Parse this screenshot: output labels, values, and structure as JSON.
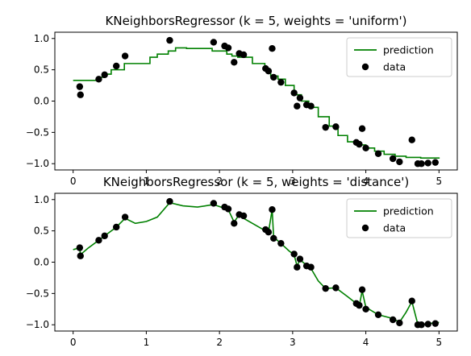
{
  "chart_data": [
    {
      "type": "line",
      "title": "KNeighborsRegressor (k = 5, weights = 'uniform')",
      "xlabel": "",
      "ylabel": "",
      "xlim": [
        -0.25,
        5.25
      ],
      "ylim": [
        -1.1,
        1.1
      ],
      "xticks": [
        0,
        1,
        2,
        3,
        4,
        5
      ],
      "yticks": [
        -1.0,
        -0.5,
        0.0,
        0.5,
        1.0
      ],
      "legend": {
        "location": "upper right",
        "entries": [
          "prediction",
          "data"
        ]
      },
      "colors": {
        "prediction": "#008000",
        "data": "#000000"
      },
      "series": [
        {
          "name": "prediction",
          "kind": "line",
          "step": true,
          "x": [
            0,
            0.35,
            0.42,
            0.52,
            0.7,
            1.05,
            1.15,
            1.3,
            1.4,
            1.55,
            1.9,
            2.1,
            2.17,
            2.25,
            2.45,
            2.62,
            2.7,
            2.8,
            2.9,
            3.02,
            3.12,
            3.22,
            3.35,
            3.5,
            3.62,
            3.75,
            3.88,
            4.0,
            4.12,
            4.25,
            4.4,
            4.55,
            4.75,
            5.0
          ],
          "y": [
            0.33,
            0.38,
            0.43,
            0.5,
            0.6,
            0.7,
            0.75,
            0.8,
            0.85,
            0.84,
            0.8,
            0.75,
            0.72,
            0.7,
            0.6,
            0.5,
            0.4,
            0.35,
            0.25,
            0.1,
            0.0,
            -0.1,
            -0.25,
            -0.4,
            -0.55,
            -0.65,
            -0.7,
            -0.75,
            -0.8,
            -0.85,
            -0.88,
            -0.9,
            -0.91,
            -0.92
          ]
        },
        {
          "name": "data",
          "kind": "scatter",
          "x": [
            0.09,
            0.1,
            0.35,
            0.43,
            0.59,
            0.71,
            1.32,
            1.92,
            2.07,
            2.12,
            2.2,
            2.27,
            2.33,
            2.63,
            2.67,
            2.72,
            2.74,
            2.84,
            3.02,
            3.06,
            3.1,
            3.19,
            3.25,
            3.45,
            3.59,
            3.87,
            3.91,
            3.95,
            4.0,
            4.17,
            4.37,
            4.46,
            4.63,
            4.71,
            4.76,
            4.85,
            4.95
          ],
          "y": [
            0.23,
            0.1,
            0.35,
            0.42,
            0.56,
            0.72,
            0.97,
            0.94,
            0.88,
            0.85,
            0.62,
            0.76,
            0.74,
            0.52,
            0.48,
            0.84,
            0.38,
            0.3,
            0.13,
            -0.08,
            0.05,
            -0.06,
            -0.08,
            -0.42,
            -0.41,
            -0.66,
            -0.69,
            -0.44,
            -0.75,
            -0.84,
            -0.92,
            -0.97,
            -0.62,
            -1.0,
            -1.0,
            -0.99,
            -0.98
          ]
        }
      ]
    },
    {
      "type": "line",
      "title": "KNeighborsRegressor (k = 5, weights = 'distance')",
      "xlabel": "",
      "ylabel": "",
      "xlim": [
        -0.25,
        5.25
      ],
      "ylim": [
        -1.1,
        1.1
      ],
      "xticks": [
        0,
        1,
        2,
        3,
        4,
        5
      ],
      "yticks": [
        -1.0,
        -0.5,
        0.0,
        0.5,
        1.0
      ],
      "legend": {
        "location": "upper right",
        "entries": [
          "prediction",
          "data"
        ]
      },
      "colors": {
        "prediction": "#008000",
        "data": "#000000"
      },
      "series": [
        {
          "name": "prediction",
          "kind": "line",
          "step": false,
          "x": [
            0,
            0.09,
            0.1,
            0.2,
            0.35,
            0.43,
            0.59,
            0.71,
            0.85,
            1.0,
            1.15,
            1.32,
            1.5,
            1.7,
            1.92,
            2.07,
            2.12,
            2.2,
            2.27,
            2.33,
            2.45,
            2.63,
            2.67,
            2.72,
            2.74,
            2.84,
            2.95,
            3.02,
            3.06,
            3.1,
            3.19,
            3.25,
            3.35,
            3.45,
            3.59,
            3.75,
            3.87,
            3.91,
            3.95,
            4.0,
            4.17,
            4.37,
            4.46,
            4.55,
            4.63,
            4.71,
            4.76,
            4.85,
            4.95,
            5.0
          ],
          "y": [
            0.2,
            0.23,
            0.12,
            0.22,
            0.35,
            0.42,
            0.56,
            0.7,
            0.62,
            0.65,
            0.72,
            0.95,
            0.9,
            0.88,
            0.92,
            0.86,
            0.84,
            0.64,
            0.76,
            0.7,
            0.62,
            0.5,
            0.48,
            0.84,
            0.4,
            0.3,
            0.18,
            0.12,
            -0.06,
            0.04,
            -0.05,
            -0.1,
            -0.3,
            -0.42,
            -0.41,
            -0.55,
            -0.66,
            -0.7,
            -0.46,
            -0.72,
            -0.84,
            -0.9,
            -0.96,
            -0.8,
            -0.63,
            -0.99,
            -1.0,
            -0.98,
            -0.97,
            -0.96
          ]
        },
        {
          "name": "data",
          "kind": "scatter",
          "x": [
            0.09,
            0.1,
            0.35,
            0.43,
            0.59,
            0.71,
            1.32,
            1.92,
            2.07,
            2.12,
            2.2,
            2.27,
            2.33,
            2.63,
            2.67,
            2.72,
            2.74,
            2.84,
            3.02,
            3.06,
            3.1,
            3.19,
            3.25,
            3.45,
            3.59,
            3.87,
            3.91,
            3.95,
            4.0,
            4.17,
            4.37,
            4.46,
            4.63,
            4.71,
            4.76,
            4.85,
            4.95
          ],
          "y": [
            0.23,
            0.1,
            0.35,
            0.42,
            0.56,
            0.72,
            0.97,
            0.94,
            0.88,
            0.85,
            0.62,
            0.76,
            0.74,
            0.52,
            0.48,
            0.84,
            0.38,
            0.3,
            0.13,
            -0.08,
            0.05,
            -0.06,
            -0.08,
            -0.42,
            -0.41,
            -0.66,
            -0.69,
            -0.44,
            -0.75,
            -0.84,
            -0.92,
            -0.97,
            -0.62,
            -1.0,
            -1.0,
            -0.99,
            -0.98
          ]
        }
      ]
    }
  ]
}
